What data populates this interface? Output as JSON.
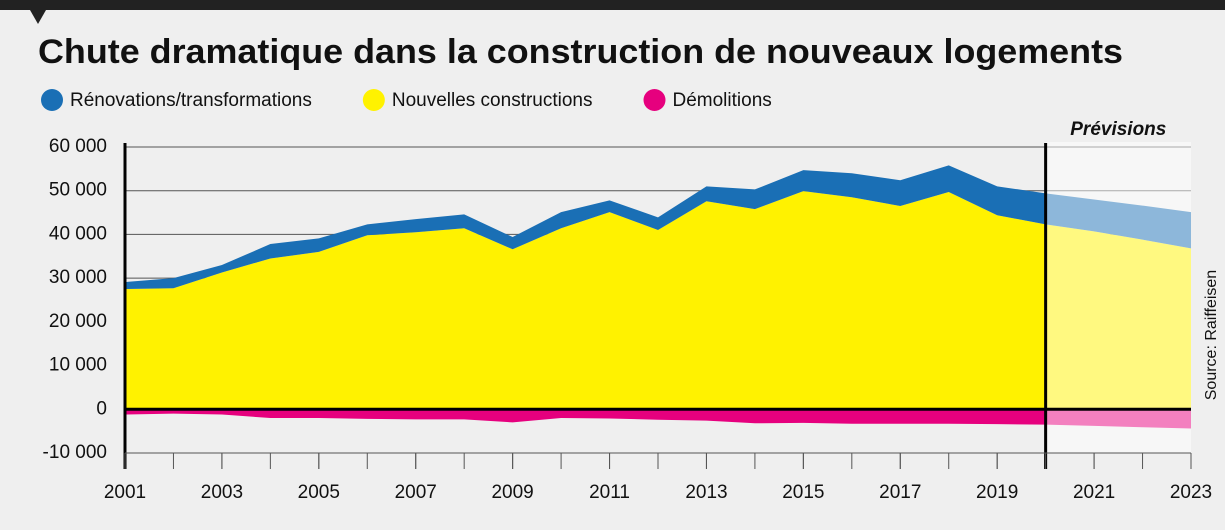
{
  "chart_data": {
    "type": "stacked-area",
    "title": "Chute dramatique dans la construction de nouveaux logements",
    "source": "Source: Raiffeisen",
    "forecast_label": "Prévisions",
    "forecast_start": 2020,
    "x": [
      2001,
      2002,
      2003,
      2004,
      2005,
      2006,
      2007,
      2008,
      2009,
      2010,
      2011,
      2012,
      2013,
      2014,
      2015,
      2016,
      2017,
      2018,
      2019,
      2020,
      2021,
      2022,
      2023
    ],
    "series": [
      {
        "name": "Rénovations/transformations",
        "color": "#1a6fb5",
        "values": [
          1600,
          2300,
          1700,
          3300,
          3100,
          2500,
          3000,
          3200,
          2800,
          3700,
          2700,
          2900,
          3400,
          4500,
          4800,
          5500,
          5900,
          6100,
          6600,
          7100,
          7300,
          7800,
          8300
        ]
      },
      {
        "name": "Nouvelles constructions",
        "color": "#fff200",
        "values": [
          27500,
          27700,
          31300,
          34500,
          36000,
          39800,
          40500,
          41400,
          36600,
          41400,
          45100,
          41000,
          47600,
          45800,
          49900,
          48500,
          46500,
          49700,
          44400,
          42300,
          40700,
          38800,
          36800
        ]
      },
      {
        "name": "Démolitions",
        "color": "#e6007e",
        "values": [
          -1200,
          -1000,
          -1200,
          -2000,
          -2000,
          -2200,
          -2300,
          -2300,
          -3000,
          -2000,
          -2100,
          -2400,
          -2600,
          -3200,
          -3100,
          -3300,
          -3300,
          -3300,
          -3400,
          -3500,
          -3800,
          -4100,
          -4400
        ]
      }
    ],
    "xlim": [
      2001,
      2023
    ],
    "xticks": [
      2001,
      2003,
      2005,
      2007,
      2009,
      2011,
      2013,
      2015,
      2017,
      2019,
      2021,
      2023
    ],
    "ylim": [
      -10000,
      60000
    ],
    "yticks": [
      {
        "value": -10000,
        "label": "-10 000"
      },
      0,
      {
        "value": 10000,
        "label": "10 000"
      },
      {
        "value": 20000,
        "label": "20 000"
      },
      {
        "value": 30000,
        "label": "30 000"
      },
      {
        "value": 40000,
        "label": "40 000"
      },
      {
        "value": 50000,
        "label": "50 000"
      },
      {
        "value": 60000,
        "label": "60 000"
      }
    ],
    "grid": true
  }
}
